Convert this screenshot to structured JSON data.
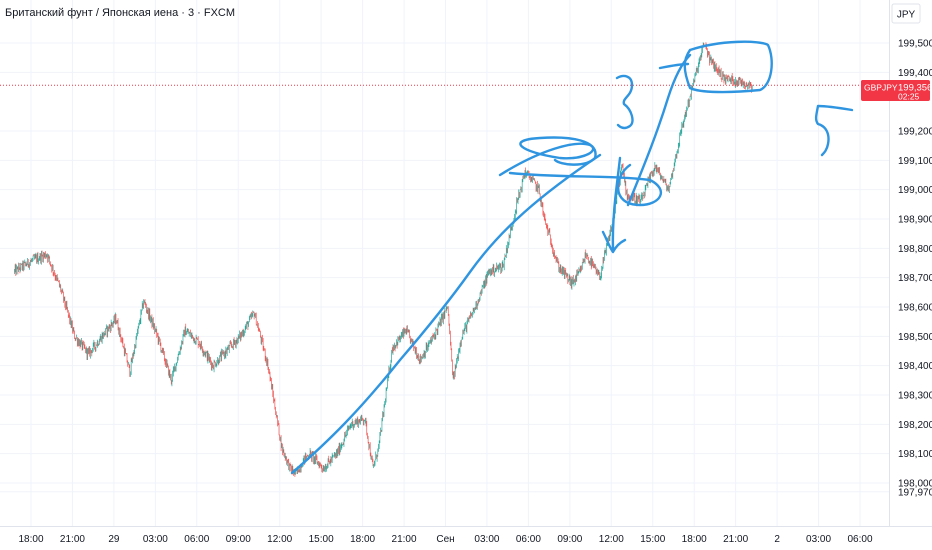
{
  "header": {
    "symbol_title": "Британский фунт / Японская иена · 3 · FXCM",
    "currency": "JPY"
  },
  "price_label": {
    "ticker": "GBPJPY",
    "price": "199,3560",
    "countdown": "02:25",
    "color": "#f23645"
  },
  "colors": {
    "up": "#26a69a",
    "down": "#ef5350",
    "grid": "#f0f3fa",
    "annotation": "#2f95e0"
  },
  "chart_data": {
    "type": "candlestick",
    "ylim": [
      197.95,
      199.58
    ],
    "y_ticks": [
      {
        "value": 197.97,
        "label": "197,9700"
      },
      {
        "value": 198.0,
        "label": "198,0000"
      },
      {
        "value": 198.1,
        "label": "198,1000"
      },
      {
        "value": 198.2,
        "label": "198,2000"
      },
      {
        "value": 198.3,
        "label": "198,3000"
      },
      {
        "value": 198.4,
        "label": "198,4000"
      },
      {
        "value": 198.5,
        "label": "198,5000"
      },
      {
        "value": 198.6,
        "label": "198,6000"
      },
      {
        "value": 198.7,
        "label": "198,7000"
      },
      {
        "value": 198.8,
        "label": "198,8000"
      },
      {
        "value": 198.9,
        "label": "198,9000"
      },
      {
        "value": 199.0,
        "label": "199,0000"
      },
      {
        "value": 199.1,
        "label": "199,1000"
      },
      {
        "value": 199.2,
        "label": "199,2000"
      },
      {
        "value": 199.4,
        "label": "199,4000"
      },
      {
        "value": 199.5,
        "label": "199,5000"
      }
    ],
    "x_ticks": [
      {
        "hour": 0,
        "label": "18:00"
      },
      {
        "hour": 3,
        "label": "21:00"
      },
      {
        "hour": 6,
        "label": "29"
      },
      {
        "hour": 9,
        "label": "03:00"
      },
      {
        "hour": 12,
        "label": "06:00"
      },
      {
        "hour": 15,
        "label": "09:00"
      },
      {
        "hour": 18,
        "label": "12:00"
      },
      {
        "hour": 21,
        "label": "15:00"
      },
      {
        "hour": 24,
        "label": "18:00"
      },
      {
        "hour": 27,
        "label": "21:00"
      },
      {
        "hour": 30,
        "label": "Сен"
      },
      {
        "hour": 33,
        "label": "03:00"
      },
      {
        "hour": 36,
        "label": "06:00"
      },
      {
        "hour": 39,
        "label": "09:00"
      },
      {
        "hour": 42,
        "label": "12:00"
      },
      {
        "hour": 45,
        "label": "15:00"
      },
      {
        "hour": 48,
        "label": "18:00"
      },
      {
        "hour": 51,
        "label": "21:00"
      },
      {
        "hour": 54,
        "label": "2"
      },
      {
        "hour": 57,
        "label": "03:00"
      },
      {
        "hour": 60,
        "label": "06:00"
      }
    ],
    "xlim_hours": [
      -1.2,
      62.2
    ],
    "last_price": 199.356,
    "last_hour": 52.2,
    "path_hours": [
      -1.2,
      0.2,
      1.2,
      2.2,
      3.2,
      4.2,
      5.2,
      6.2,
      7.2,
      8.2,
      9.2,
      10.2,
      11.2,
      12.2,
      13.2,
      14.2,
      15.2,
      16.2,
      17.2,
      18.2,
      18.8,
      19.2,
      19.8,
      20.2,
      21.2,
      22.2,
      23.2,
      24.2,
      24.8,
      25.2,
      26.2,
      27.2,
      28.2,
      29.2,
      29.8,
      30.2,
      30.6,
      31.2,
      32.2,
      33.2,
      34.2,
      35.2,
      35.8,
      36.2,
      36.8,
      37.2,
      38.2,
      39.2,
      39.8,
      40.2,
      41.2,
      42.2,
      42.8,
      43.2,
      44.2,
      45.2,
      46.2,
      47.2,
      48.2,
      48.8,
      49.2,
      50.2,
      51.2,
      52.2
    ],
    "path_values": [
      198.72,
      198.76,
      198.78,
      198.66,
      198.5,
      198.44,
      198.5,
      198.56,
      198.38,
      198.62,
      198.5,
      198.35,
      198.52,
      198.48,
      198.4,
      198.45,
      198.5,
      198.58,
      198.4,
      198.12,
      198.05,
      198.03,
      198.08,
      198.1,
      198.05,
      198.1,
      198.2,
      198.22,
      198.05,
      198.12,
      198.46,
      198.52,
      198.42,
      198.5,
      198.56,
      198.6,
      198.35,
      198.5,
      198.6,
      198.72,
      198.74,
      198.95,
      199.06,
      199.04,
      199.0,
      198.9,
      198.74,
      198.68,
      198.72,
      198.78,
      198.7,
      198.9,
      199.08,
      198.98,
      198.96,
      199.08,
      199.0,
      199.22,
      199.4,
      199.5,
      199.44,
      199.38,
      199.37,
      199.356
    ],
    "annotations": [
      {
        "type": "text",
        "text": "3"
      },
      {
        "type": "text",
        "text": "5"
      },
      {
        "type": "arrow",
        "direction": "down"
      }
    ]
  }
}
